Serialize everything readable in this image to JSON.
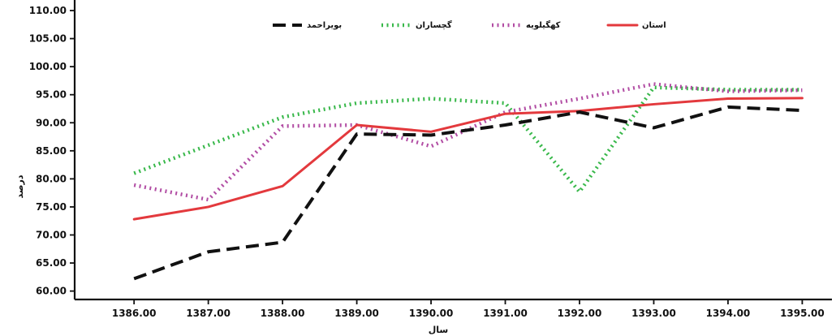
{
  "chart_data": {
    "type": "line",
    "x": [
      1386,
      1387,
      1388,
      1389,
      1390,
      1391,
      1392,
      1393,
      1394,
      1395
    ],
    "x_tick_labels": [
      "1386.00",
      "1387.00",
      "1388.00",
      "1389.00",
      "1390.00",
      "1391.00",
      "1392.00",
      "1393.00",
      "1394.00",
      "1395.00"
    ],
    "y_tick_labels": [
      "60.00",
      "65.00",
      "70.00",
      "75.00",
      "80.00",
      "85.00",
      "90.00",
      "95.00",
      "100.00",
      "105.00",
      "110.00"
    ],
    "xlabel": "سال",
    "ylabel": "درصد",
    "xlim": [
      1385.2,
      1395.4
    ],
    "ylim": [
      58.5,
      110
    ],
    "grid": false,
    "legend_position": "top",
    "series": [
      {
        "name": "بویراحمد",
        "color": "#111111",
        "line_style": "dashed",
        "values": [
          62.2,
          67.0,
          68.7,
          88.0,
          87.8,
          89.6,
          91.9,
          89.1,
          92.8,
          92.2
        ]
      },
      {
        "name": "گچساران",
        "color": "#38b84a",
        "line_style": "dotted",
        "values": [
          81.0,
          86.0,
          91.0,
          93.5,
          94.3,
          93.5,
          77.7,
          96.3,
          95.9,
          95.9
        ]
      },
      {
        "name": "کهگیلویه",
        "color": "#b24da4",
        "line_style": "dotted",
        "values": [
          78.9,
          76.3,
          89.4,
          89.6,
          85.8,
          91.9,
          94.3,
          96.9,
          95.6,
          95.8
        ]
      },
      {
        "name": "استان",
        "color": "#e3393d",
        "line_style": "solid",
        "values": [
          72.8,
          75.0,
          78.7,
          89.6,
          88.4,
          91.6,
          92.1,
          93.3,
          94.3,
          94.4
        ]
      }
    ]
  }
}
